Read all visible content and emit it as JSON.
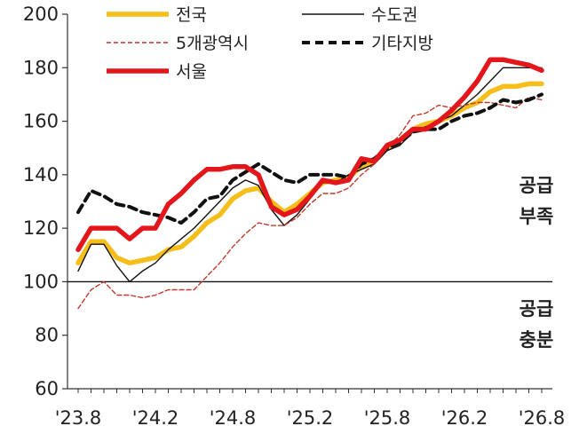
{
  "chart_data": {
    "type": "line",
    "ylim": [
      60,
      200
    ],
    "yticks": [
      60,
      80,
      100,
      120,
      140,
      160,
      180,
      200
    ],
    "xticks": [
      "'23.8",
      "'24.2",
      "'24.8",
      "'25.2",
      "'25.8",
      "'26.2",
      "'26.8"
    ],
    "x": [
      "'23.8",
      "'23.9",
      "'23.10",
      "'23.11",
      "'23.12",
      "'24.1",
      "'24.2",
      "'24.3",
      "'24.4",
      "'24.5",
      "'24.6",
      "'24.7",
      "'24.8",
      "'24.9",
      "'24.10",
      "'24.11",
      "'24.12",
      "'25.1",
      "'25.2",
      "'25.3",
      "'25.4",
      "'25.5",
      "'25.6",
      "'25.7",
      "'25.8",
      "'25.9",
      "'25.10",
      "'25.11",
      "'25.12",
      "'26.1",
      "'26.2",
      "'26.3",
      "'26.4",
      "'26.5",
      "'26.6",
      "'26.7",
      "'26.8"
    ],
    "reference_line": 100,
    "annotations": [
      {
        "lines": [
          "공급",
          "부족"
        ]
      },
      {
        "lines": [
          "공급",
          "충분"
        ]
      }
    ],
    "legend_position": "top",
    "series": [
      {
        "name": "전국",
        "color": "#F5BE1B",
        "style": "thick",
        "values": [
          107,
          115,
          115,
          109,
          107,
          108,
          109,
          112,
          113,
          117,
          122,
          125,
          131,
          134,
          135,
          130,
          126,
          129,
          133,
          137,
          138,
          139,
          143,
          145,
          150,
          153,
          157,
          159,
          160,
          162,
          165,
          167,
          171,
          173,
          173,
          174,
          174
        ]
      },
      {
        "name": "수도권",
        "color": "#111111",
        "style": "thin",
        "values": [
          104,
          114,
          114,
          106,
          100,
          104,
          107,
          112,
          116,
          120,
          125,
          130,
          135,
          138,
          136,
          127,
          121,
          125,
          131,
          137,
          137,
          140,
          142,
          144,
          149,
          151,
          156,
          158,
          160,
          162,
          166,
          170,
          175,
          180,
          180,
          180,
          180
        ]
      },
      {
        "name": "5개광역시",
        "color": "#C0392B",
        "style": "thin-dashed",
        "values": [
          90,
          97,
          100,
          95,
          95,
          94,
          95,
          97,
          97,
          97,
          102,
          107,
          113,
          118,
          122,
          121,
          121,
          124,
          129,
          133,
          133,
          135,
          140,
          144,
          150,
          155,
          162,
          163,
          166,
          165,
          166,
          167,
          167,
          166,
          165,
          169,
          168
        ]
      },
      {
        "name": "기타지방",
        "color": "#111111",
        "style": "thick-dashed",
        "values": [
          126,
          134,
          132,
          129,
          128,
          126,
          125,
          124,
          122,
          126,
          131,
          132,
          138,
          141,
          144,
          141,
          138,
          137,
          140,
          140,
          140,
          139,
          144,
          146,
          150,
          152,
          156,
          157,
          157,
          160,
          162,
          163,
          165,
          168,
          167,
          168,
          170
        ]
      },
      {
        "name": "서울",
        "color": "#E3171B",
        "style": "thick",
        "values": [
          112,
          120,
          120,
          120,
          116,
          120,
          120,
          129,
          133,
          138,
          142,
          142,
          143,
          143,
          140,
          128,
          125,
          127,
          132,
          138,
          137,
          138,
          146,
          145,
          151,
          153,
          157,
          157,
          160,
          164,
          169,
          175,
          183,
          183,
          182,
          181,
          179
        ]
      }
    ]
  }
}
